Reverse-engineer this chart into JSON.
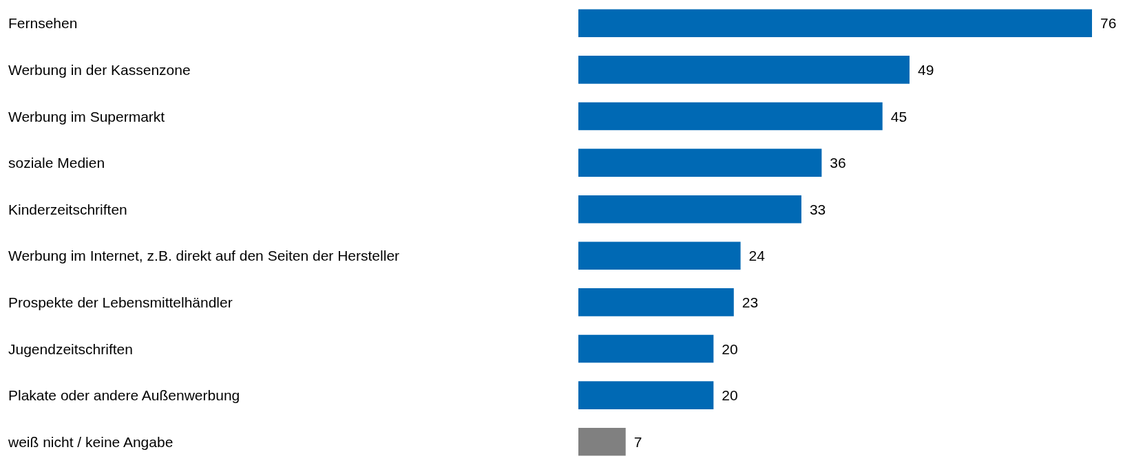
{
  "chart_data": {
    "type": "bar",
    "orientation": "horizontal",
    "categories": [
      "Fernsehen",
      "Werbung in der Kassenzone",
      "Werbung im Supermarkt",
      "soziale Medien",
      "Kinderzeitschriften",
      "Werbung im Internet, z.B. direkt auf den Seiten der Hersteller",
      "Prospekte der Lebensmittelhändler",
      "Jugendzeitschriften",
      "Plakate oder andere Außenwerbung",
      "weiß nicht / keine Angabe"
    ],
    "values": [
      76,
      49,
      45,
      36,
      33,
      24,
      23,
      20,
      20,
      7
    ],
    "colors": [
      "#0069b4",
      "#0069b4",
      "#0069b4",
      "#0069b4",
      "#0069b4",
      "#0069b4",
      "#0069b4",
      "#0069b4",
      "#0069b4",
      "#808080"
    ],
    "data_labels": true
  }
}
